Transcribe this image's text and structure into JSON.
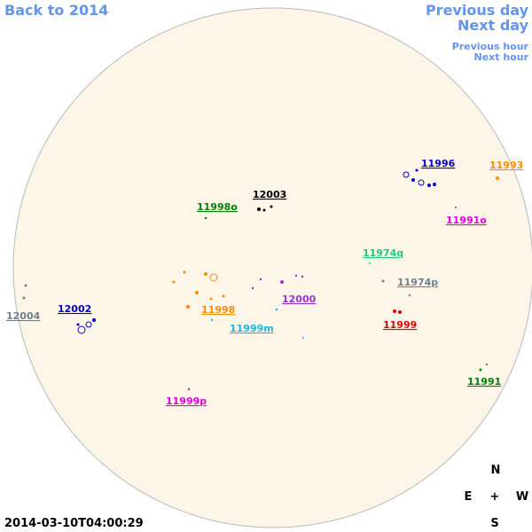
{
  "nav": {
    "back": "Back to 2014",
    "previous_day": "Previous day",
    "next_day": "Next day",
    "previous_hour": "Previous hour",
    "next_hour": "Next hour"
  },
  "regions": [
    {
      "label": "11996",
      "color": "#0000cc"
    },
    {
      "label": "11993",
      "color": "#ff8c00"
    },
    {
      "label": "12003",
      "color": "#000000"
    },
    {
      "label": "11998o",
      "color": "#008000"
    },
    {
      "label": "11991o",
      "color": "#e000e0"
    },
    {
      "label": "11974q",
      "color": "#22cc77"
    },
    {
      "label": "11974p",
      "color": "#708090"
    },
    {
      "label": "12000",
      "color": "#9932cc"
    },
    {
      "label": "12002",
      "color": "#0000cc"
    },
    {
      "label": "12004",
      "color": "#708090"
    },
    {
      "label": "11998",
      "color": "#ff8c00"
    },
    {
      "label": "11999m",
      "color": "#1eb4e6"
    },
    {
      "label": "11999",
      "color": "#e00000"
    },
    {
      "label": "11991",
      "color": "#008000"
    },
    {
      "label": "11999p",
      "color": "#e000e0"
    }
  ],
  "timestamp": "2014-03-10T04:00:29",
  "compass": {
    "north": "N",
    "east": "E",
    "center": "+",
    "west": "W",
    "south": "S"
  }
}
